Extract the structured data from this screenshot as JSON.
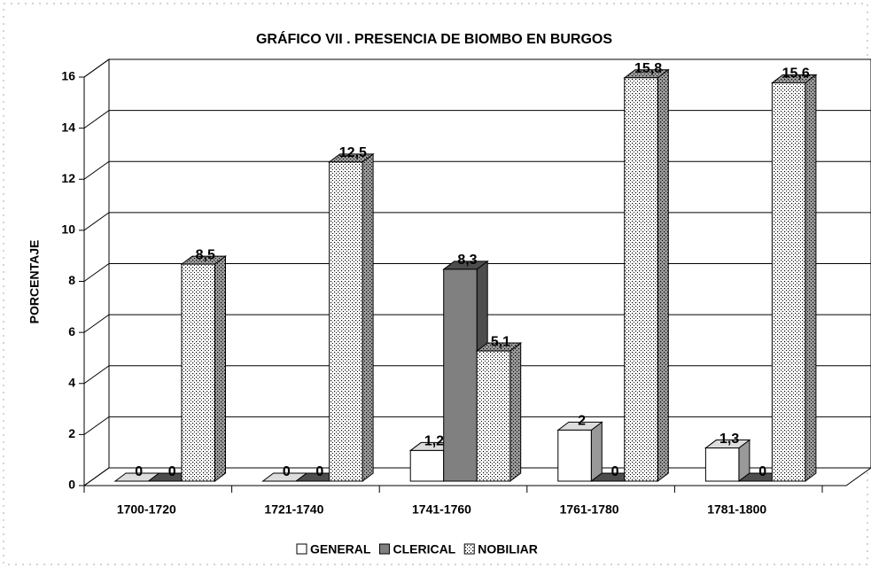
{
  "chart_data": {
    "type": "bar3d",
    "title": "GRÁFICO VII  . PRESENCIA DE BIOMBO EN BURGOS",
    "y_label": "PORCENTAJE",
    "categories": [
      "1700-1720",
      "1721-1740",
      "1741-1760",
      "1761-1780",
      "1781-1800"
    ],
    "series": [
      {
        "name": "GENERAL",
        "color": "#ffffff",
        "values": [
          0,
          0,
          1.2,
          2,
          1.3
        ],
        "value_labels": [
          "0",
          "0",
          "1,2",
          "2",
          "1,3"
        ]
      },
      {
        "name": "CLERICAL",
        "color": "#808080",
        "values": [
          0,
          0,
          8.3,
          0,
          0
        ],
        "value_labels": [
          "0",
          "0",
          "8,3",
          "0",
          "0"
        ]
      },
      {
        "name": "NOBILIAR",
        "color": "#ffffff",
        "pattern": "dots",
        "values": [
          8.5,
          12.5,
          5.1,
          15.8,
          15.6
        ],
        "value_labels": [
          "8,5",
          "12,5",
          "5,1",
          "15,8",
          "15,6"
        ]
      }
    ],
    "ylim": [
      0,
      16
    ],
    "yticks": [
      0,
      2,
      4,
      6,
      8,
      10,
      12,
      14,
      16
    ],
    "grid": true,
    "legend": "bottom"
  }
}
